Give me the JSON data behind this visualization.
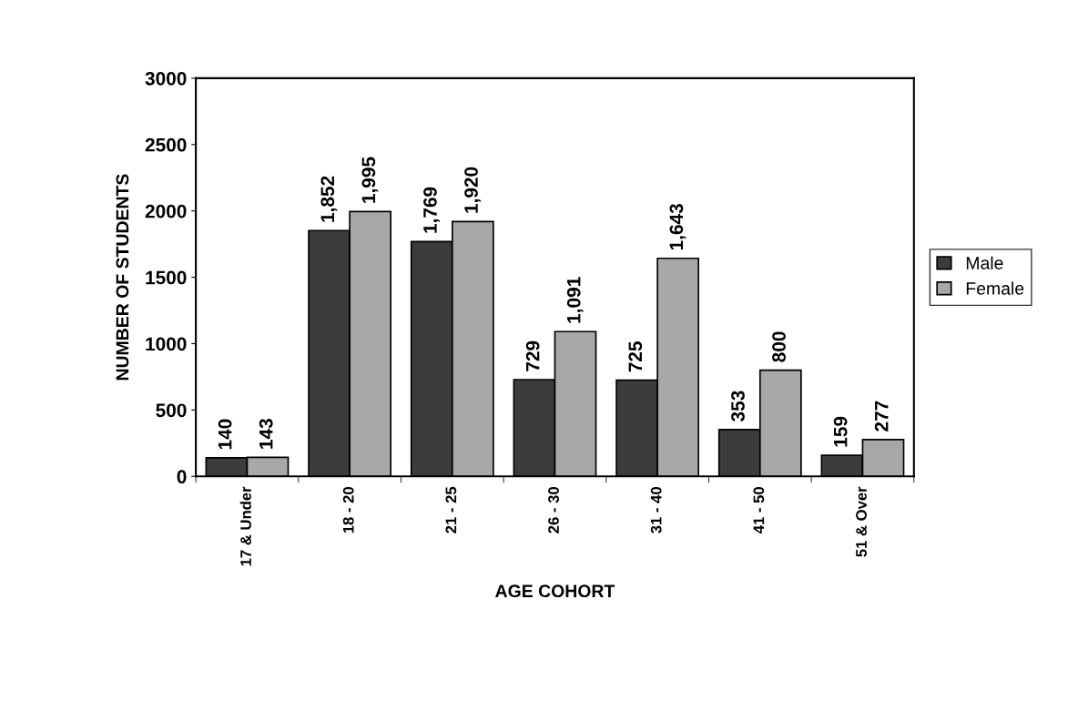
{
  "chart_data": {
    "type": "bar",
    "xlabel": "AGE COHORT",
    "ylabel": "NUMBER OF STUDENTS",
    "categories": [
      "17 & Under",
      "18 - 20",
      "21 - 25",
      "26 - 30",
      "31 - 40",
      "41 - 50",
      "51 & Over"
    ],
    "series": [
      {
        "name": "Male",
        "color": "#3c3c3c",
        "values": [
          140,
          1852,
          1769,
          729,
          725,
          353,
          159
        ],
        "value_labels": [
          "140",
          "1,852",
          "1,769",
          "729",
          "725",
          "353",
          "159"
        ]
      },
      {
        "name": "Female",
        "color": "#a8a8a8",
        "values": [
          143,
          1995,
          1920,
          1091,
          1643,
          800,
          277
        ],
        "value_labels": [
          "143",
          "1,995",
          "1,920",
          "1,091",
          "1,643",
          "800",
          "277"
        ]
      }
    ],
    "ylim": [
      0,
      3000
    ],
    "yticks": [
      0,
      500,
      1000,
      1500,
      2000,
      2500,
      3000
    ],
    "grid": false,
    "legend": "right"
  }
}
